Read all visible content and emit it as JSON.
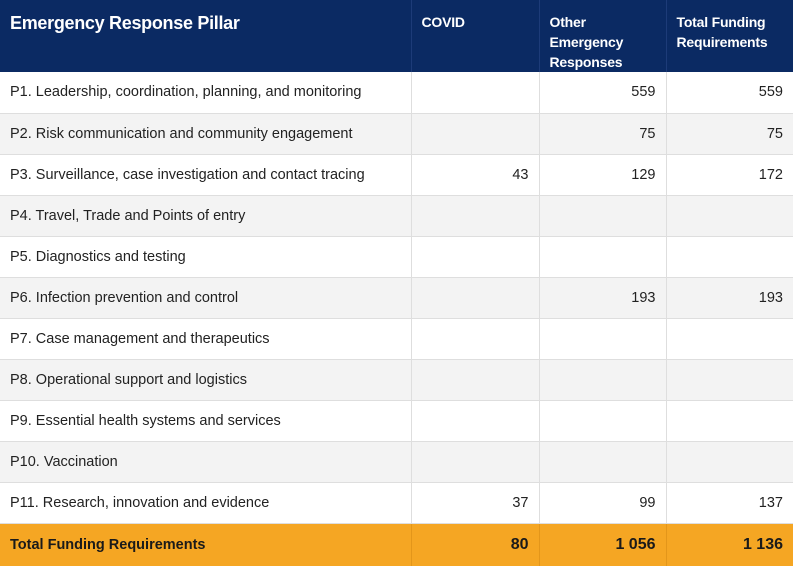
{
  "header": {
    "pillar": "Emergency Response Pillar",
    "covid": "COVID",
    "other": "Other Emergency Responses",
    "total": "Total Funding Requirements"
  },
  "rows": [
    {
      "pillar": "P1. Leadership, coordination, planning, and monitoring",
      "covid": "",
      "other": "559",
      "total": "559"
    },
    {
      "pillar": "P2. Risk communication and community engagement",
      "covid": "",
      "other": "75",
      "total": "75"
    },
    {
      "pillar": "P3. Surveillance, case investigation and contact tracing",
      "covid": "43",
      "other": "129",
      "total": "172"
    },
    {
      "pillar": "P4. Travel, Trade and Points of entry",
      "covid": "",
      "other": "",
      "total": ""
    },
    {
      "pillar": "P5. Diagnostics and testing",
      "covid": "",
      "other": "",
      "total": ""
    },
    {
      "pillar": "P6. Infection prevention and control",
      "covid": "",
      "other": "193",
      "total": "193"
    },
    {
      "pillar": "P7. Case management and therapeutics",
      "covid": "",
      "other": "",
      "total": ""
    },
    {
      "pillar": "P8. Operational support and logistics",
      "covid": "",
      "other": "",
      "total": ""
    },
    {
      "pillar": "P9. Essential health systems and services",
      "covid": "",
      "other": "",
      "total": ""
    },
    {
      "pillar": "P10. Vaccination",
      "covid": "",
      "other": "",
      "total": ""
    },
    {
      "pillar": "P11. Research, innovation and evidence",
      "covid": "37",
      "other": "99",
      "total": "137"
    }
  ],
  "footer": {
    "label": "Total Funding Requirements",
    "covid": "80",
    "other": "1 056",
    "total": "1 136"
  },
  "colors": {
    "header_bg": "#0b2a63",
    "footer_bg": "#f5a623",
    "stripe": "#f3f3f3"
  }
}
